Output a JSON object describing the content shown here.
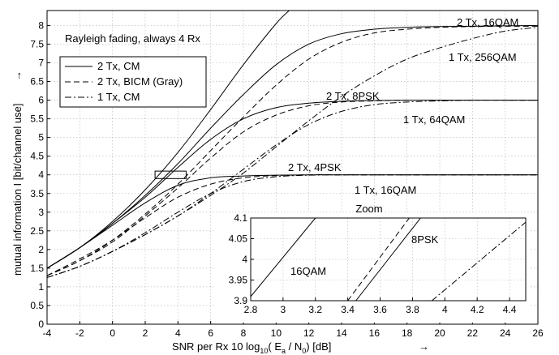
{
  "chart_data": [
    {
      "type": "line",
      "xlabel": "SNR per Rx   10 log",
      "xlabel_sub": "10",
      "xlabel_mid": "( E",
      "xlabel_sub2": "a",
      "xlabel_tail": " / N",
      "xlabel_sub3": "0",
      "xlabel_end": ")  [dB]",
      "x_arrow": "→",
      "ylabel": "mutual information   I [bit/channel use]",
      "y_arrow": "→",
      "xlim": [
        -4,
        26
      ],
      "ylim": [
        0,
        8.4
      ],
      "xticks": [
        "-4",
        "-2",
        "0",
        "2",
        "4",
        "6",
        "8",
        "10",
        "12",
        "14",
        "16",
        "18",
        "20",
        "22",
        "24",
        "26"
      ],
      "yticks": [
        "0",
        "0.5",
        "1",
        "1.5",
        "2",
        "2.5",
        "3",
        "3.5",
        "4",
        "4.5",
        "5",
        "5.5",
        "6",
        "6.5",
        "7",
        "7.5",
        "8"
      ],
      "grid": true,
      "annotation": "Rayleigh fading, always 4 Rx",
      "legend": {
        "placement": "top-left",
        "entries": [
          {
            "label": "2 Tx, CM",
            "style": "solid"
          },
          {
            "label": "2 Tx, BICM (Gray)",
            "style": "dashed"
          },
          {
            "label": "1 Tx, CM",
            "style": "dashdot"
          }
        ]
      },
      "curve_labels": [
        "2 Tx, 16QAM",
        "1 Tx, 256QAM",
        "2 Tx, 8PSK",
        "1 Tx, 64QAM",
        "2 Tx, 4PSK",
        "1 Tx, 16QAM"
      ],
      "series": [
        {
          "style": "solid",
          "x": [
            -4,
            -2,
            0,
            2,
            4,
            6,
            8,
            10,
            10.8
          ],
          "y": [
            1.5,
            2.05,
            2.75,
            3.6,
            4.6,
            5.75,
            6.95,
            8.05,
            8.4
          ]
        },
        {
          "style": "solid",
          "x": [
            -4,
            -2,
            0,
            2,
            4,
            6,
            8,
            10,
            12,
            14,
            16,
            18,
            20,
            22,
            24,
            26
          ],
          "y": [
            1.5,
            2.05,
            2.7,
            3.45,
            4.3,
            5.25,
            6.15,
            6.95,
            7.5,
            7.78,
            7.9,
            7.95,
            7.97,
            7.98,
            7.99,
            8.0
          ]
        },
        {
          "style": "dashed",
          "x": [
            -4,
            -2,
            0,
            2,
            4,
            6,
            8,
            10,
            12,
            14,
            16,
            18,
            20,
            22,
            24,
            26
          ],
          "y": [
            1.3,
            1.7,
            2.25,
            2.95,
            3.75,
            4.65,
            5.55,
            6.4,
            7.1,
            7.55,
            7.8,
            7.9,
            7.95,
            7.97,
            7.98,
            7.98
          ]
        },
        {
          "style": "dashdot",
          "x": [
            -4,
            -2,
            0,
            2,
            4,
            6,
            8,
            10,
            12,
            14,
            16,
            18,
            20,
            22,
            24,
            26
          ],
          "y": [
            1.25,
            1.55,
            1.95,
            2.4,
            2.9,
            3.45,
            4.05,
            4.75,
            5.45,
            6.1,
            6.65,
            7.1,
            7.4,
            7.65,
            7.85,
            7.95
          ]
        },
        {
          "style": "solid",
          "x": [
            -4,
            -2,
            0,
            2,
            4,
            6,
            8,
            10,
            12,
            14,
            16,
            18,
            20,
            22,
            24,
            26
          ],
          "y": [
            1.5,
            2.05,
            2.7,
            3.4,
            4.2,
            4.95,
            5.5,
            5.8,
            5.92,
            5.97,
            5.99,
            6.0,
            6.0,
            6.0,
            6.0,
            6.0
          ]
        },
        {
          "style": "dashed",
          "x": [
            -4,
            -2,
            0,
            2,
            4,
            6,
            8,
            10,
            12,
            14,
            16,
            18,
            20,
            22,
            24,
            26
          ],
          "y": [
            1.3,
            1.7,
            2.2,
            2.9,
            3.65,
            4.45,
            5.15,
            5.6,
            5.85,
            5.95,
            5.98,
            6.0,
            6.0,
            6.0,
            6.0,
            6.0
          ]
        },
        {
          "style": "dashdot",
          "x": [
            -4,
            -2,
            0,
            2,
            4,
            6,
            8,
            10,
            12,
            14,
            16,
            18,
            20,
            22,
            24,
            26
          ],
          "y": [
            1.25,
            1.55,
            1.95,
            2.4,
            2.9,
            3.5,
            4.15,
            4.8,
            5.35,
            5.7,
            5.88,
            5.95,
            5.98,
            6.0,
            6.0,
            6.0
          ]
        },
        {
          "style": "solid",
          "x": [
            -4,
            -2,
            0,
            2,
            4,
            6,
            8,
            10,
            12,
            14,
            16,
            18,
            20,
            22,
            24,
            26
          ],
          "y": [
            1.5,
            2.05,
            2.65,
            3.25,
            3.72,
            3.92,
            3.97,
            3.99,
            4.0,
            4.0,
            4.0,
            4.0,
            4.0,
            4.0,
            4.0,
            4.0
          ]
        },
        {
          "style": "dashed",
          "x": [
            -4,
            -2,
            0,
            2,
            4,
            6,
            8,
            10,
            12,
            14,
            16,
            18,
            20,
            22,
            24,
            26
          ],
          "y": [
            1.3,
            1.75,
            2.25,
            2.85,
            3.4,
            3.75,
            3.92,
            3.98,
            4.0,
            4.0,
            4.0,
            4.0,
            4.0,
            4.0,
            4.0,
            4.0
          ]
        },
        {
          "style": "dashdot",
          "x": [
            -4,
            -2,
            0,
            2,
            4,
            6,
            8,
            10,
            12,
            14,
            16,
            18,
            20,
            22,
            24,
            26
          ],
          "y": [
            1.25,
            1.55,
            1.95,
            2.45,
            3.0,
            3.5,
            3.82,
            3.95,
            3.99,
            4.0,
            4.0,
            4.0,
            4.0,
            4.0,
            4.0,
            4.0
          ]
        }
      ],
      "zoom_box": {
        "x": [
          2.6,
          4.5
        ],
        "y": [
          3.9,
          4.1
        ]
      }
    },
    {
      "type": "line",
      "title": "Zoom",
      "xlim": [
        2.8,
        4.5
      ],
      "ylim": [
        3.9,
        4.1
      ],
      "xticks": [
        "2.8",
        "3",
        "3.2",
        "3.4",
        "3.6",
        "3.8",
        "4",
        "4.2",
        "4.4"
      ],
      "yticks": [
        "3.9",
        "3.95",
        "4",
        "4.05",
        "4.1"
      ],
      "grid": true,
      "curve_labels": [
        "16QAM",
        "8PSK"
      ],
      "series": [
        {
          "style": "solid",
          "x": [
            2.8,
            3.2
          ],
          "y": [
            3.91,
            4.1
          ]
        },
        {
          "style": "solid",
          "x": [
            3.45,
            3.85
          ],
          "y": [
            3.9,
            4.1
          ]
        },
        {
          "style": "dashed",
          "x": [
            3.4,
            3.78
          ],
          "y": [
            3.9,
            4.1
          ]
        },
        {
          "style": "dashdot",
          "x": [
            3.92,
            4.5
          ],
          "y": [
            3.9,
            4.09
          ]
        }
      ]
    }
  ]
}
